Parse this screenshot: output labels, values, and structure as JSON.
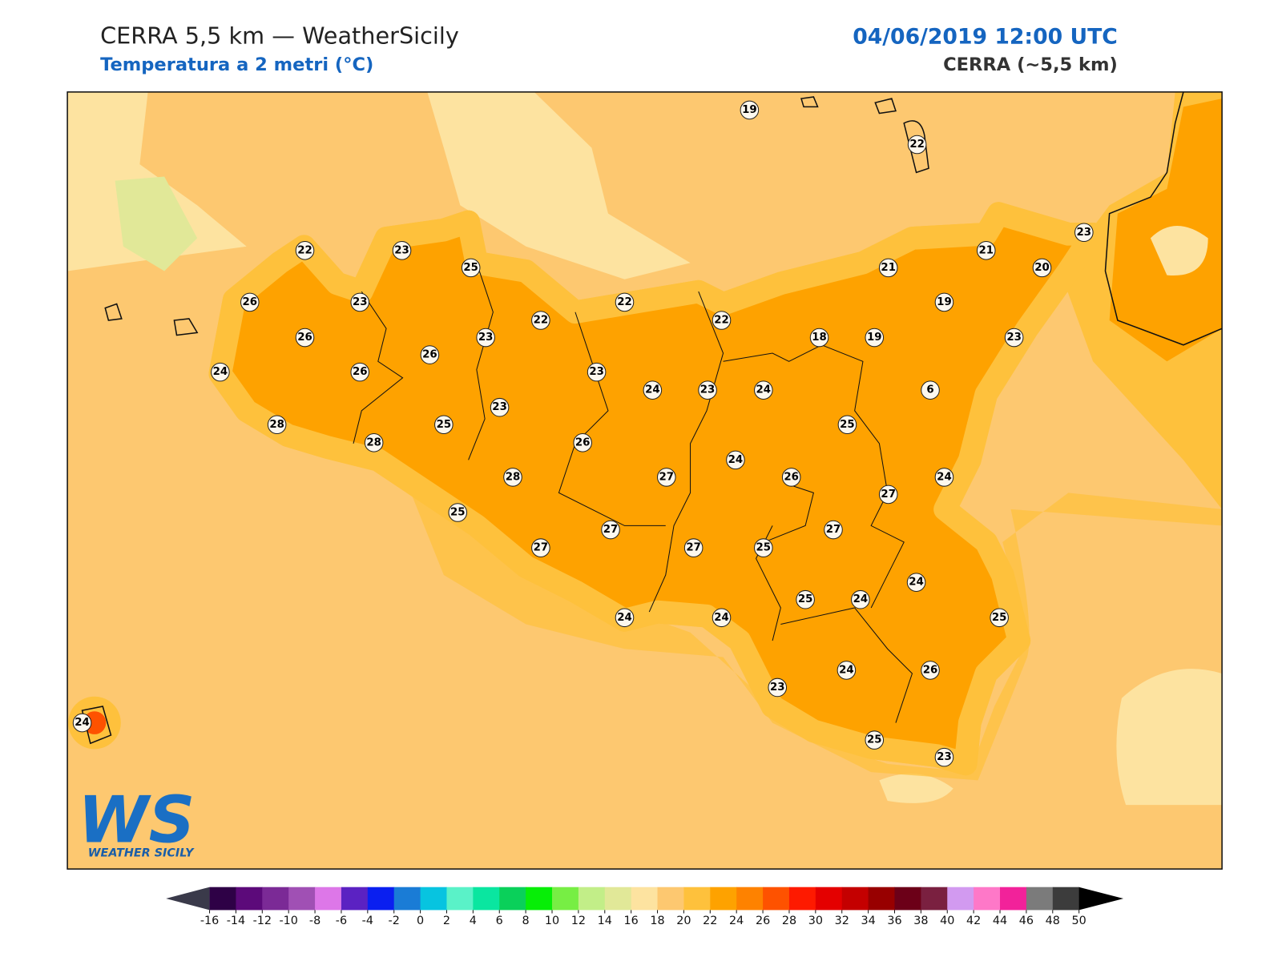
{
  "header": {
    "title": "CERRA 5,5 km — WeatherSicily",
    "subtitle": "Temperatura a 2 metri (°C)",
    "datetime": "04/06/2019 12:00 UTC",
    "model": "CERRA (~5,5 km)"
  },
  "logo": {
    "text": "WS",
    "tagline": "WEATHER SICILY"
  },
  "stations": [
    19,
    22,
    22,
    23,
    25,
    26,
    23,
    26,
    24,
    26,
    26,
    23,
    22,
    22,
    22,
    23,
    23,
    24,
    23,
    24,
    18,
    19,
    21,
    19,
    21,
    20,
    23,
    23,
    6,
    25,
    28,
    28,
    25,
    26,
    28,
    27,
    24,
    26,
    27,
    24,
    25,
    27,
    27,
    27,
    25,
    27,
    24,
    25,
    24,
    25,
    24,
    24,
    23,
    24,
    26,
    25,
    23,
    24
  ],
  "colorbar": {
    "ticks": [
      -16,
      -14,
      -12,
      -10,
      -8,
      -6,
      -4,
      -2,
      0,
      2,
      4,
      6,
      8,
      10,
      12,
      14,
      16,
      18,
      20,
      22,
      24,
      26,
      28,
      30,
      32,
      34,
      36,
      38,
      40,
      42,
      44,
      46,
      48,
      50
    ],
    "colors": [
      "#2e0146",
      "#5c0a7a",
      "#7b2a96",
      "#a050b4",
      "#dd77e8",
      "#5b22c2",
      "#0a1ff0",
      "#1a7cd6",
      "#07c4e0",
      "#5af2c8",
      "#0ae6a0",
      "#0ad05a",
      "#07ee07",
      "#77ee44",
      "#c2ee88",
      "#e1e898",
      "#fde3a0",
      "#fdc870",
      "#fec13c",
      "#fea200",
      "#fe8200",
      "#fe5200",
      "#fe1a00",
      "#e40000",
      "#c40000",
      "#980000",
      "#6c0018",
      "#7a2040",
      "#d29af0",
      "#fe78c8",
      "#f2229a",
      "#7b7b7b",
      "#3c3c3c"
    ],
    "under_color": "#3a3a4a",
    "over_color": "#000000"
  }
}
